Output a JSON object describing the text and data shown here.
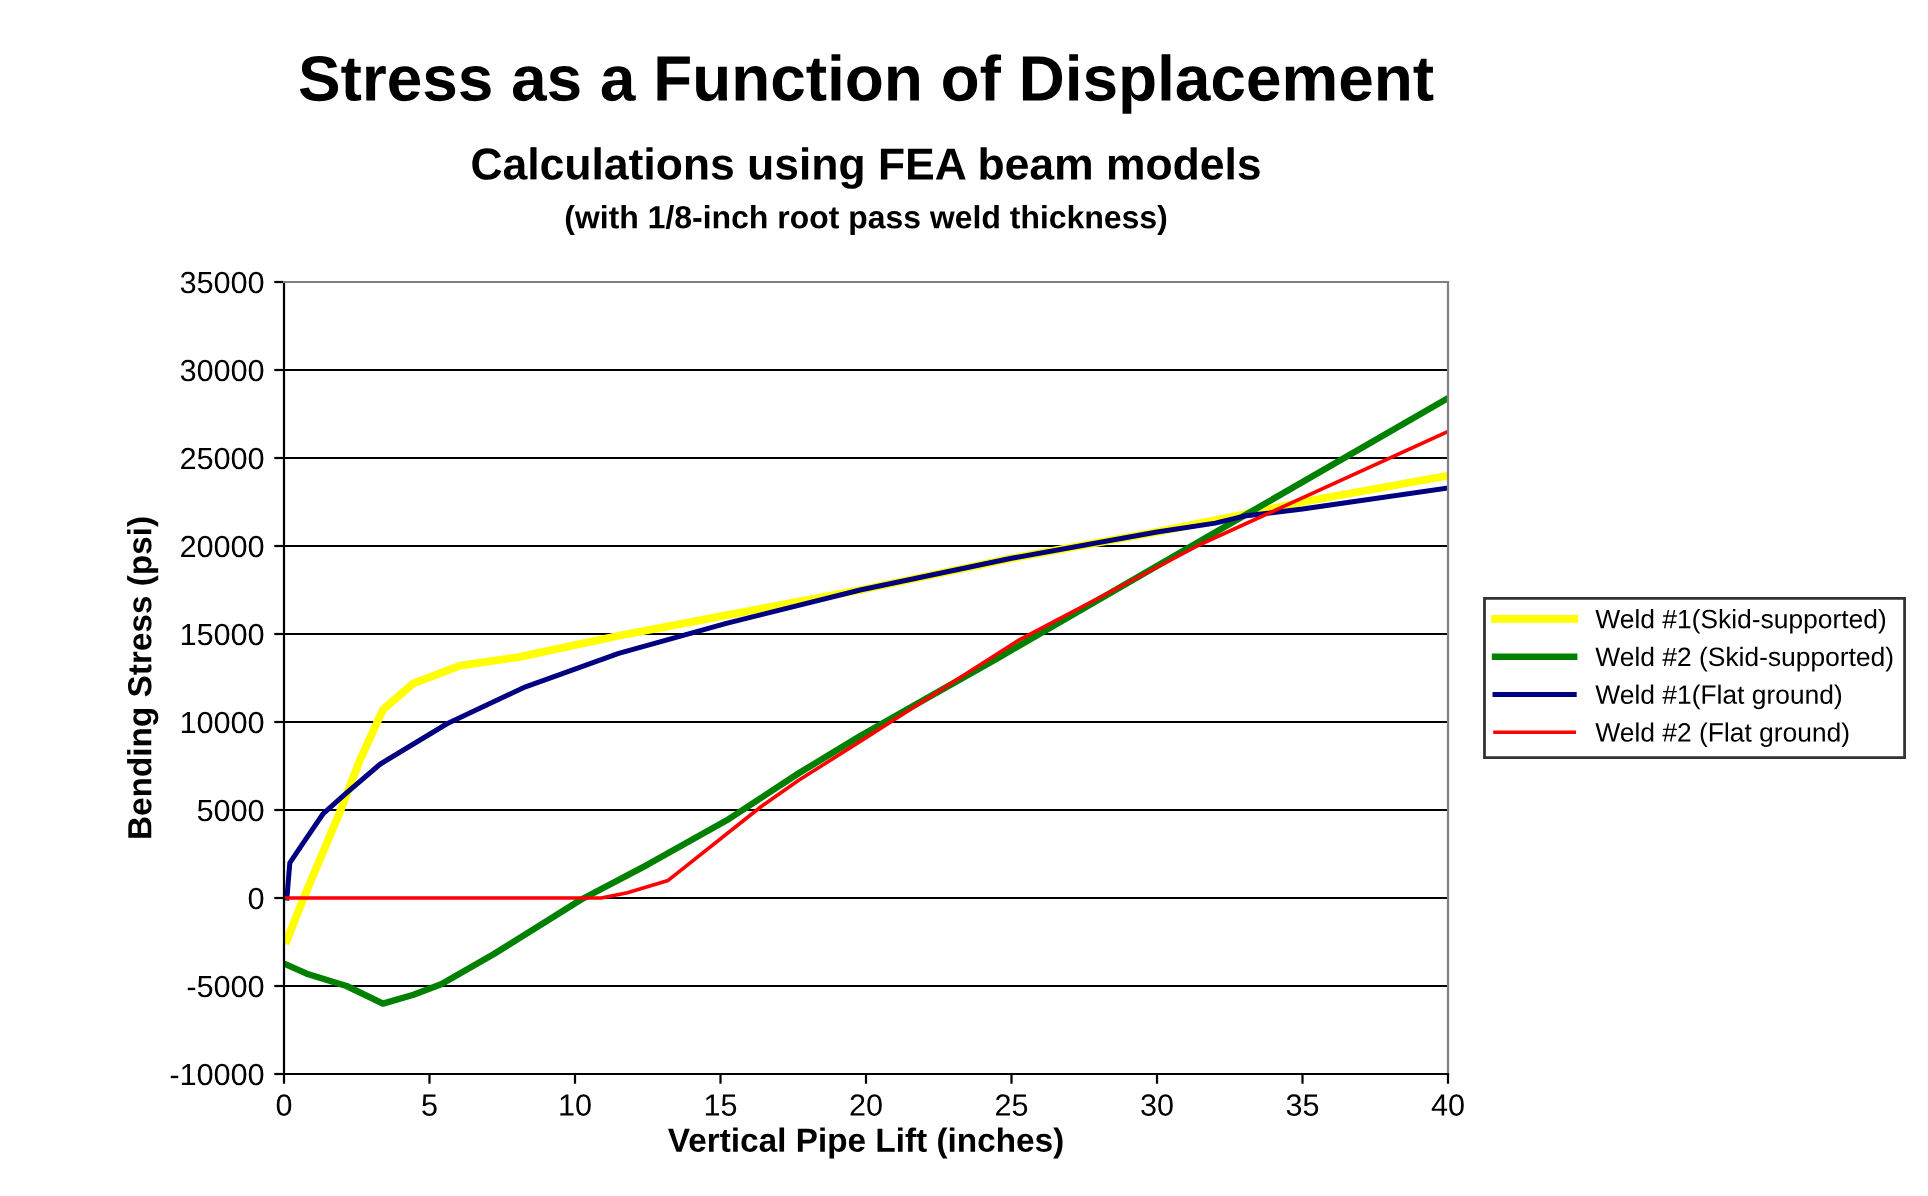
{
  "chart_data": {
    "type": "line",
    "title": "Stress as a Function of Displacement",
    "subtitle": "Calculations using FEA beam models",
    "annotations": [
      "(with 1/8-inch root pass weld thickness)"
    ],
    "xlabel": "Vertical Pipe Lift (inches)",
    "ylabel": "Bending Stress (psi)",
    "xlim": [
      0,
      40
    ],
    "xticks": [
      0,
      5,
      10,
      15,
      20,
      25,
      30,
      35,
      40
    ],
    "ylim": [
      -10000,
      35000
    ],
    "yticks": [
      -10000,
      -5000,
      0,
      5000,
      10000,
      15000,
      20000,
      25000,
      30000,
      35000
    ],
    "grid": "y",
    "legend": "right",
    "marker": "none",
    "line_style": "solid",
    "series": [
      {
        "name": "Weld #1(Skid-supported)",
        "color": "#ffff00",
        "x": [
          0.1,
          0.65,
          1.9,
          2.6,
          3.4,
          4.45,
          6.05,
          8.1,
          11.5,
          15,
          19.8,
          25,
          30,
          33,
          35,
          40
        ],
        "values": [
          -2400,
          -100,
          4800,
          7800,
          10700,
          12200,
          13200,
          13700,
          14900,
          16000,
          17500,
          19300,
          20800,
          21800,
          22500,
          24000
        ]
      },
      {
        "name": "Weld #2 (Skid-supported)",
        "color": "#008000",
        "x": [
          0.1,
          0.78,
          2.15,
          3.4,
          4.45,
          5.4,
          7.2,
          10.2,
          12.5,
          15.2,
          17.7,
          19.8,
          24.6,
          31.5,
          40
        ],
        "values": [
          -3800,
          -4300,
          -5000,
          -6000,
          -5500,
          -4900,
          -3200,
          -100,
          1900,
          4400,
          7100,
          9200,
          13700,
          20300,
          28400
        ]
      },
      {
        "name": "Weld #1(Flat ground)",
        "color": "#000080",
        "x": [
          0.1,
          0.2,
          0.65,
          1.35,
          2.1,
          3.3,
          5.6,
          8.3,
          11.5,
          15.2,
          19.8,
          25,
          30,
          32,
          33,
          35,
          40
        ],
        "values": [
          0,
          2000,
          3100,
          4800,
          5900,
          7600,
          9900,
          12000,
          13900,
          15600,
          17500,
          19300,
          20800,
          21300,
          21700,
          22100,
          23300
        ]
      },
      {
        "name": "Weld #2 (Flat ground)",
        "color": "#ff0000",
        "x": [
          0,
          5,
          10.9,
          11.8,
          13.2,
          16.4,
          17.7,
          19.8,
          25.3,
          31.5,
          40
        ],
        "values": [
          0,
          0,
          0,
          300,
          1000,
          5200,
          6700,
          8900,
          14700,
          20100,
          26500
        ]
      }
    ]
  }
}
